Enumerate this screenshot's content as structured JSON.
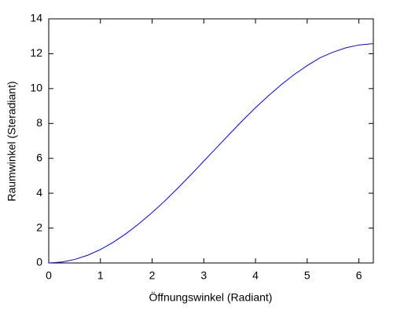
{
  "chart_data": {
    "type": "line",
    "x_label": "Öffnungswinkel (Radiant)",
    "y_label": "Raumwinkel (Steradiant)",
    "x": [
      0,
      0.25,
      0.5,
      0.75,
      1,
      1.25,
      1.5,
      1.75,
      2,
      2.25,
      2.5,
      2.75,
      3,
      3.25,
      3.5,
      3.75,
      4,
      4.25,
      4.5,
      4.75,
      5,
      5.25,
      5.5,
      5.75,
      6,
      6.25,
      6.28
    ],
    "series": [
      {
        "color": "#0000ff",
        "values": [
          0,
          0.05,
          0.2,
          0.44,
          0.77,
          1.19,
          1.69,
          2.26,
          2.89,
          3.57,
          4.3,
          5.06,
          5.84,
          6.62,
          7.4,
          8.17,
          8.9,
          9.59,
          10.23,
          10.81,
          11.32,
          11.77,
          12.09,
          12.34,
          12.5,
          12.57,
          12.57
        ]
      }
    ],
    "xlim": [
      0,
      6.28
    ],
    "ylim": [
      0,
      14
    ],
    "xticks": [
      0,
      1,
      2,
      3,
      4,
      5,
      6
    ],
    "yticks": [
      0,
      2,
      4,
      6,
      8,
      10,
      12,
      14
    ]
  }
}
